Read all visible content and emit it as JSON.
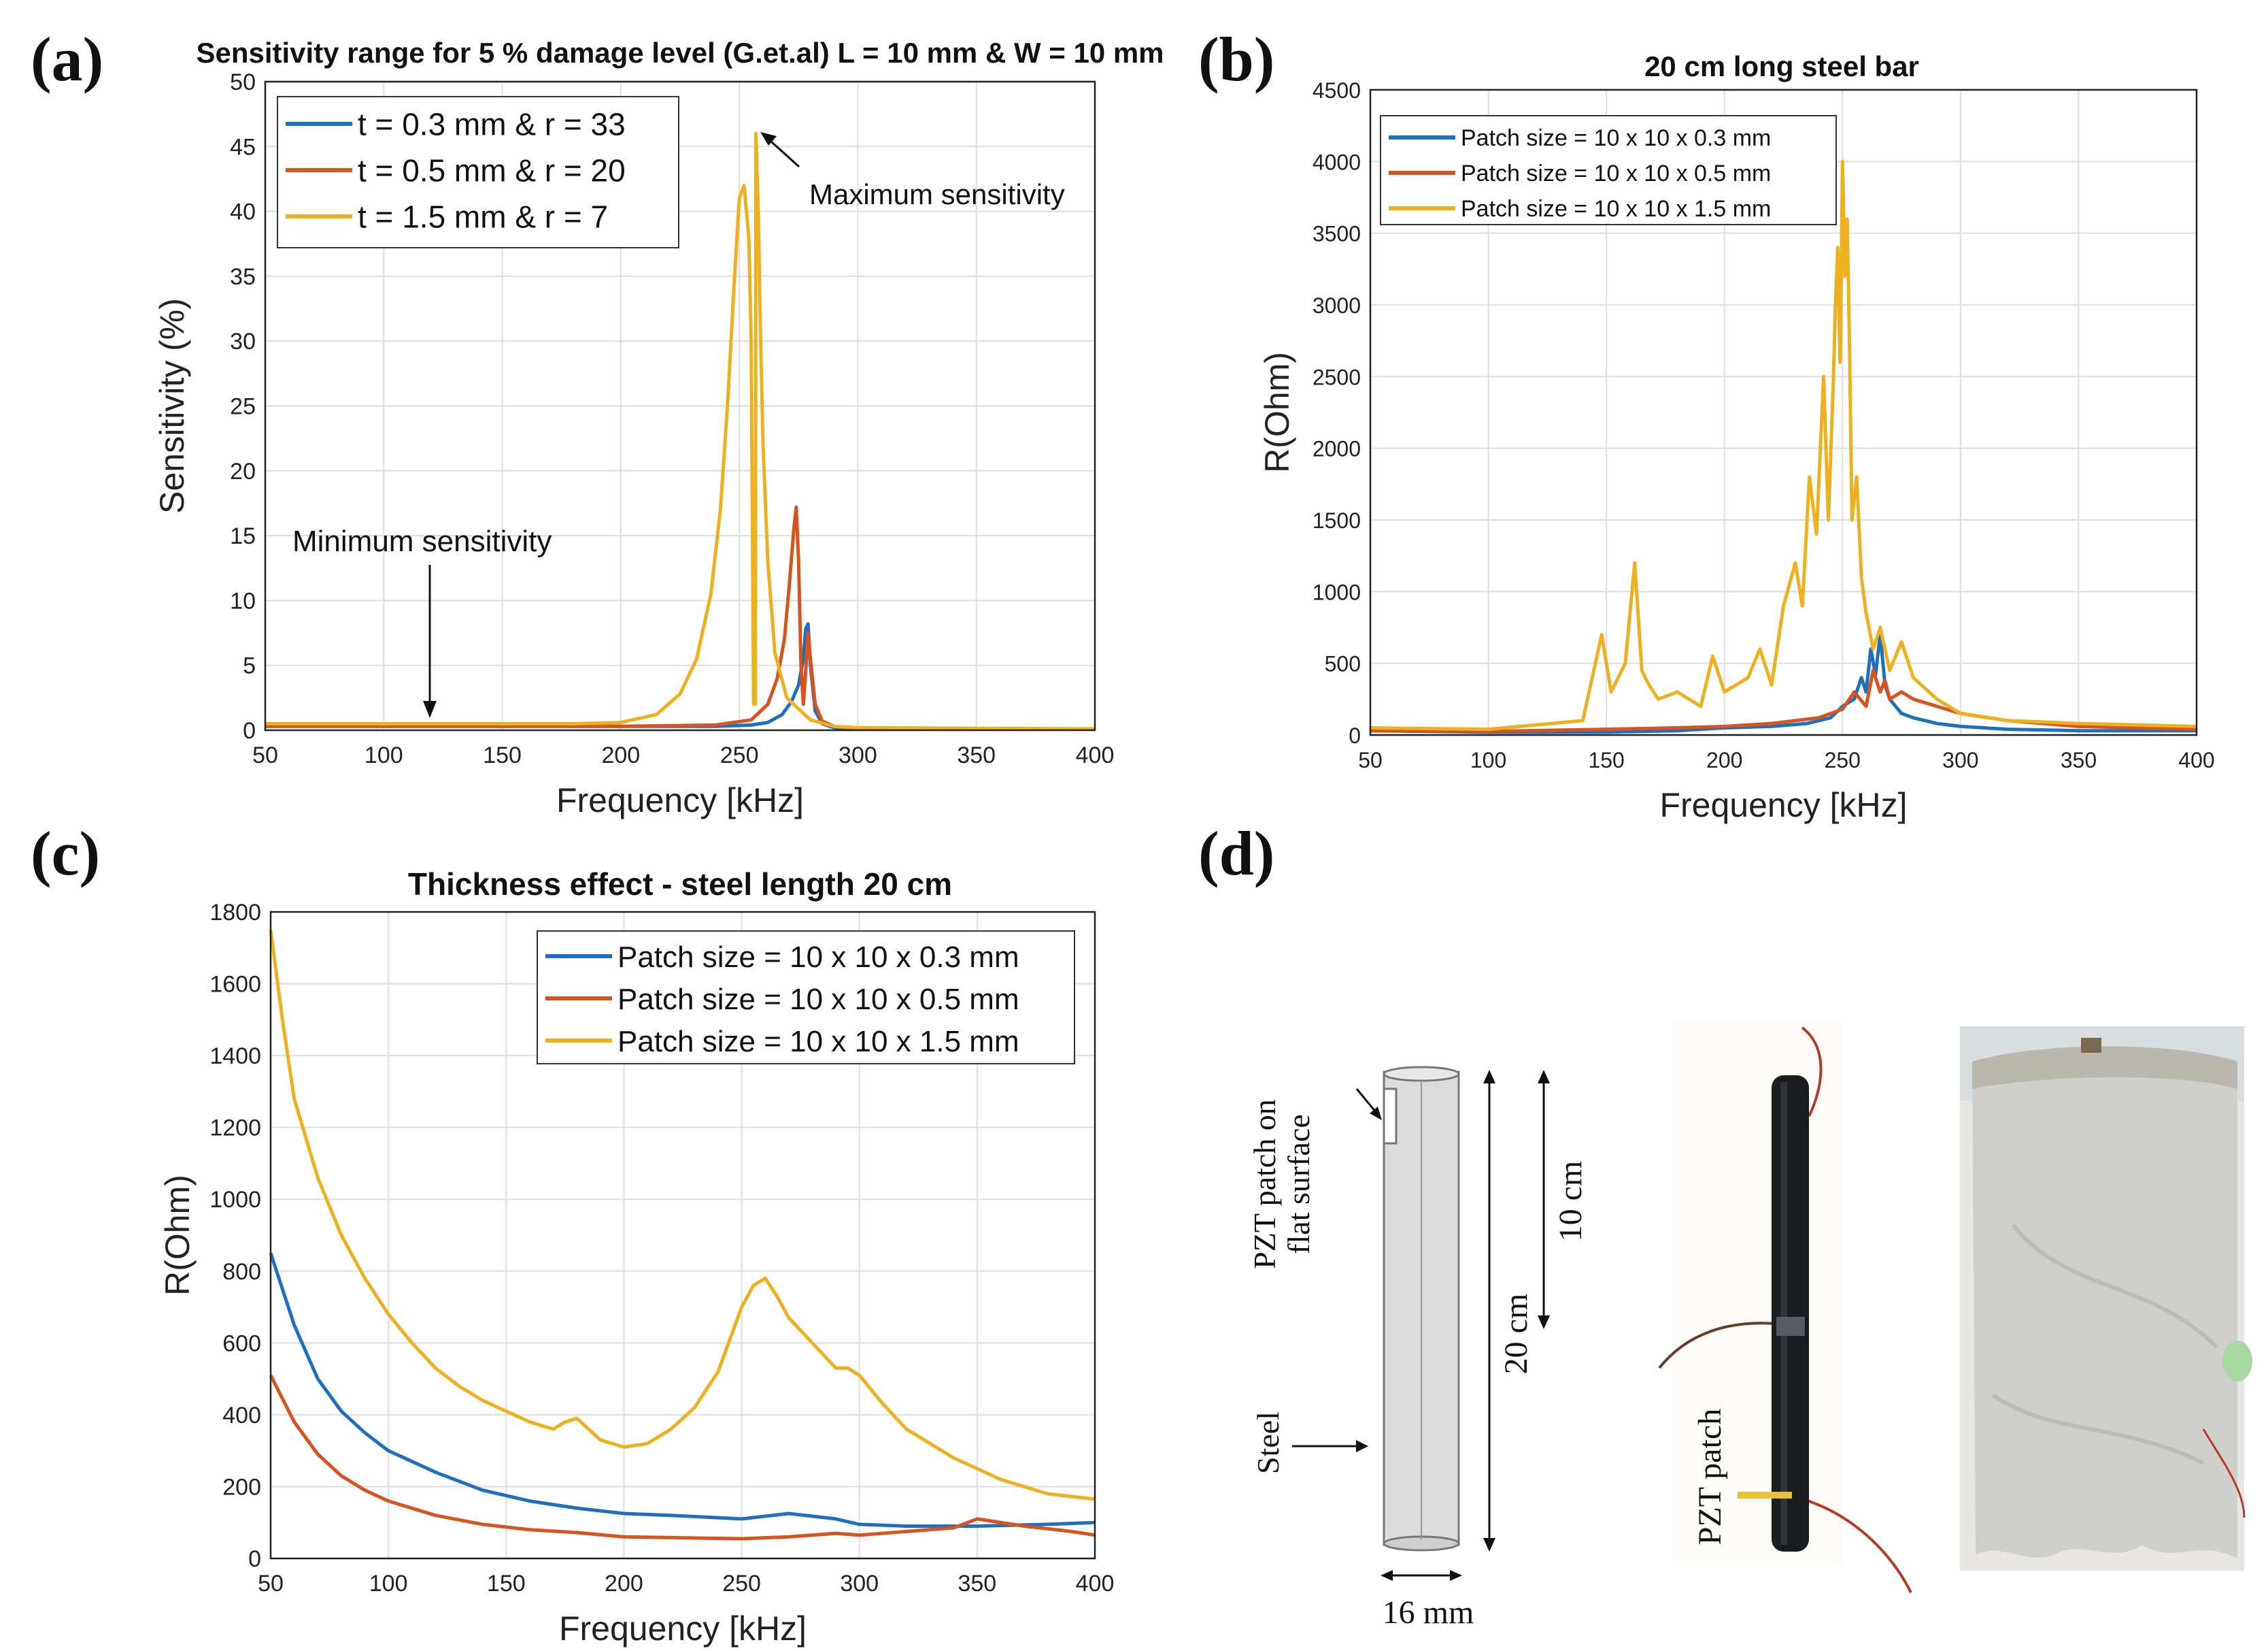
{
  "panel_labels": [
    "(a)",
    "(b)",
    "(c)",
    "(d)"
  ],
  "colors": {
    "blue": "#1f6fbf",
    "red": "#d9531e",
    "yellow": "#edb120",
    "grid": "#dedede",
    "axis": "#222222"
  },
  "chart_data": [
    {
      "type": "line",
      "title": "Sensitivity range for 5 % damage level (G.et.al) L = 10 mm & W = 10 mm",
      "xlabel": "Frequency [kHz]",
      "ylabel": "Sensitivity (%)",
      "xlim": [
        50,
        400
      ],
      "ylim": [
        0,
        50
      ],
      "xticks": [
        50,
        100,
        150,
        200,
        250,
        300,
        350,
        400
      ],
      "yticks": [
        0,
        5,
        10,
        15,
        20,
        25,
        30,
        35,
        40,
        45,
        50
      ],
      "grid": true,
      "legend": "top-left",
      "annotations": [
        "Maximum sensitivity",
        "Minimum sensitivity"
      ],
      "series": [
        {
          "name": "t = 0.3 mm & r = 33",
          "color": "blue",
          "x": [
            50,
            100,
            150,
            200,
            240,
            255,
            262,
            268,
            272,
            275,
            277,
            278,
            279,
            280,
            282,
            285,
            290,
            300,
            400
          ],
          "y": [
            0.3,
            0.3,
            0.3,
            0.3,
            0.3,
            0.4,
            0.6,
            1.2,
            2.2,
            3.5,
            5.5,
            7.8,
            8.2,
            5.0,
            1.5,
            0.5,
            0.2,
            0.1,
            0.1
          ]
        },
        {
          "name": "t = 0.5 mm & r = 20",
          "color": "red",
          "x": [
            50,
            100,
            150,
            200,
            240,
            255,
            262,
            266,
            269,
            271,
            273,
            274,
            275,
            276,
            277,
            278,
            279,
            280,
            282,
            285,
            290,
            300,
            400
          ],
          "y": [
            0.3,
            0.3,
            0.3,
            0.3,
            0.4,
            0.8,
            2.0,
            4.0,
            7.0,
            11.0,
            15.5,
            17.2,
            13.0,
            5.0,
            2.0,
            4.5,
            7.5,
            5.5,
            2.0,
            0.7,
            0.3,
            0.1,
            0.1
          ]
        },
        {
          "name": "t = 1.5 mm & r = 7",
          "color": "yellow",
          "x": [
            50,
            100,
            150,
            180,
            200,
            215,
            225,
            232,
            238,
            242,
            245,
            248,
            250,
            252,
            254,
            255,
            256,
            256.8,
            257,
            258,
            259,
            260,
            262,
            265,
            270,
            280,
            290,
            300,
            400
          ],
          "y": [
            0.5,
            0.5,
            0.5,
            0.5,
            0.6,
            1.2,
            2.8,
            5.5,
            10.5,
            17.0,
            25.0,
            35.0,
            41.0,
            42.0,
            38.0,
            30.0,
            2.0,
            2.0,
            46.0,
            40.0,
            30.0,
            22.0,
            13.0,
            6.0,
            2.5,
            0.8,
            0.3,
            0.2,
            0.1
          ]
        }
      ]
    },
    {
      "type": "line",
      "title": "20 cm long steel bar",
      "xlabel": "Frequency [kHz]",
      "ylabel": "R(Ohm)",
      "xlim": [
        50,
        400
      ],
      "ylim": [
        0,
        4500
      ],
      "xticks": [
        50,
        100,
        150,
        200,
        250,
        300,
        350,
        400
      ],
      "yticks": [
        0,
        500,
        1000,
        1500,
        2000,
        2500,
        3000,
        3500,
        4000,
        4500
      ],
      "grid": true,
      "legend": "top-left",
      "series": [
        {
          "name": "Patch size = 10 x 10 x 0.3 mm",
          "color": "blue",
          "x": [
            50,
            100,
            150,
            180,
            200,
            220,
            235,
            245,
            250,
            255,
            258,
            260,
            262,
            264,
            266,
            268,
            270,
            275,
            280,
            290,
            300,
            320,
            350,
            400
          ],
          "y": [
            30,
            20,
            20,
            30,
            50,
            60,
            80,
            120,
            200,
            250,
            400,
            300,
            600,
            420,
            700,
            350,
            250,
            150,
            120,
            80,
            60,
            40,
            30,
            30
          ]
        },
        {
          "name": "Patch size = 10 x 10 x 0.5 mm",
          "color": "red",
          "x": [
            50,
            100,
            150,
            180,
            200,
            220,
            240,
            250,
            255,
            260,
            263,
            266,
            268,
            270,
            275,
            280,
            290,
            300,
            320,
            350,
            400
          ],
          "y": [
            30,
            25,
            40,
            50,
            60,
            80,
            120,
            180,
            300,
            200,
            450,
            300,
            380,
            250,
            300,
            250,
            200,
            150,
            100,
            60,
            40
          ]
        },
        {
          "name": "Patch size = 10 x 10 x 1.5 mm",
          "color": "yellow",
          "x": [
            50,
            100,
            140,
            148,
            152,
            158,
            162,
            165,
            168,
            172,
            180,
            190,
            195,
            200,
            210,
            215,
            220,
            225,
            230,
            233,
            236,
            239,
            242,
            244,
            246,
            247,
            248,
            249,
            250,
            251,
            252,
            253,
            254,
            256,
            258,
            260,
            263,
            266,
            270,
            275,
            280,
            290,
            300,
            320,
            350,
            400
          ],
          "y": [
            50,
            40,
            100,
            700,
            300,
            500,
            1200,
            450,
            350,
            250,
            300,
            200,
            550,
            300,
            400,
            600,
            350,
            900,
            1200,
            900,
            1800,
            1400,
            2500,
            1500,
            2400,
            3000,
            3400,
            2600,
            4000,
            3200,
            3600,
            2700,
            1500,
            1800,
            1100,
            850,
            600,
            750,
            450,
            650,
            400,
            250,
            150,
            100,
            80,
            60
          ]
        }
      ]
    },
    {
      "type": "line",
      "title": "Thickness effect - steel length 20 cm",
      "xlabel": "Frequency [kHz]",
      "ylabel": "R(Ohm)",
      "xlim": [
        50,
        400
      ],
      "ylim": [
        0,
        1800
      ],
      "xticks": [
        50,
        100,
        150,
        200,
        250,
        300,
        350,
        400
      ],
      "yticks": [
        0,
        200,
        400,
        600,
        800,
        1000,
        1200,
        1400,
        1600,
        1800
      ],
      "grid": true,
      "legend": "top-right",
      "series": [
        {
          "name": "Patch size = 10 x 10 x 0.3 mm",
          "color": "blue",
          "x": [
            50,
            60,
            70,
            80,
            90,
            100,
            120,
            140,
            160,
            180,
            200,
            220,
            250,
            270,
            290,
            300,
            320,
            350,
            380,
            400
          ],
          "y": [
            850,
            650,
            500,
            410,
            350,
            300,
            240,
            190,
            160,
            140,
            125,
            120,
            110,
            125,
            110,
            95,
            90,
            90,
            95,
            100
          ]
        },
        {
          "name": "Patch size = 10 x 10 x 0.5 mm",
          "color": "red",
          "x": [
            50,
            60,
            70,
            80,
            90,
            100,
            120,
            140,
            160,
            180,
            200,
            220,
            250,
            270,
            290,
            300,
            320,
            340,
            350,
            370,
            390,
            400
          ],
          "y": [
            510,
            380,
            290,
            230,
            190,
            160,
            120,
            95,
            80,
            72,
            60,
            58,
            55,
            60,
            70,
            65,
            75,
            85,
            110,
            90,
            75,
            65
          ]
        },
        {
          "name": "Patch size = 10 x 10 x 1.5 mm",
          "color": "yellow",
          "x": [
            50,
            55,
            60,
            70,
            80,
            90,
            100,
            110,
            120,
            130,
            140,
            150,
            160,
            170,
            175,
            180,
            185,
            190,
            200,
            210,
            220,
            230,
            240,
            250,
            255,
            260,
            265,
            270,
            280,
            290,
            295,
            300,
            310,
            320,
            340,
            360,
            380,
            400
          ],
          "y": [
            1750,
            1500,
            1280,
            1060,
            900,
            780,
            680,
            600,
            530,
            480,
            440,
            410,
            380,
            360,
            380,
            390,
            360,
            330,
            310,
            320,
            360,
            420,
            520,
            700,
            760,
            780,
            730,
            670,
            600,
            530,
            530,
            510,
            430,
            360,
            280,
            220,
            180,
            165
          ]
        }
      ]
    }
  ],
  "diagram_d": {
    "patch_label_line1": "PZT patch on",
    "patch_label_line2": "flat surface",
    "steel_label": "Steel",
    "length_label": "20 cm",
    "half_label": "10 cm",
    "diameter_label": "16 mm",
    "photo_patch_label": "PZT patch"
  }
}
